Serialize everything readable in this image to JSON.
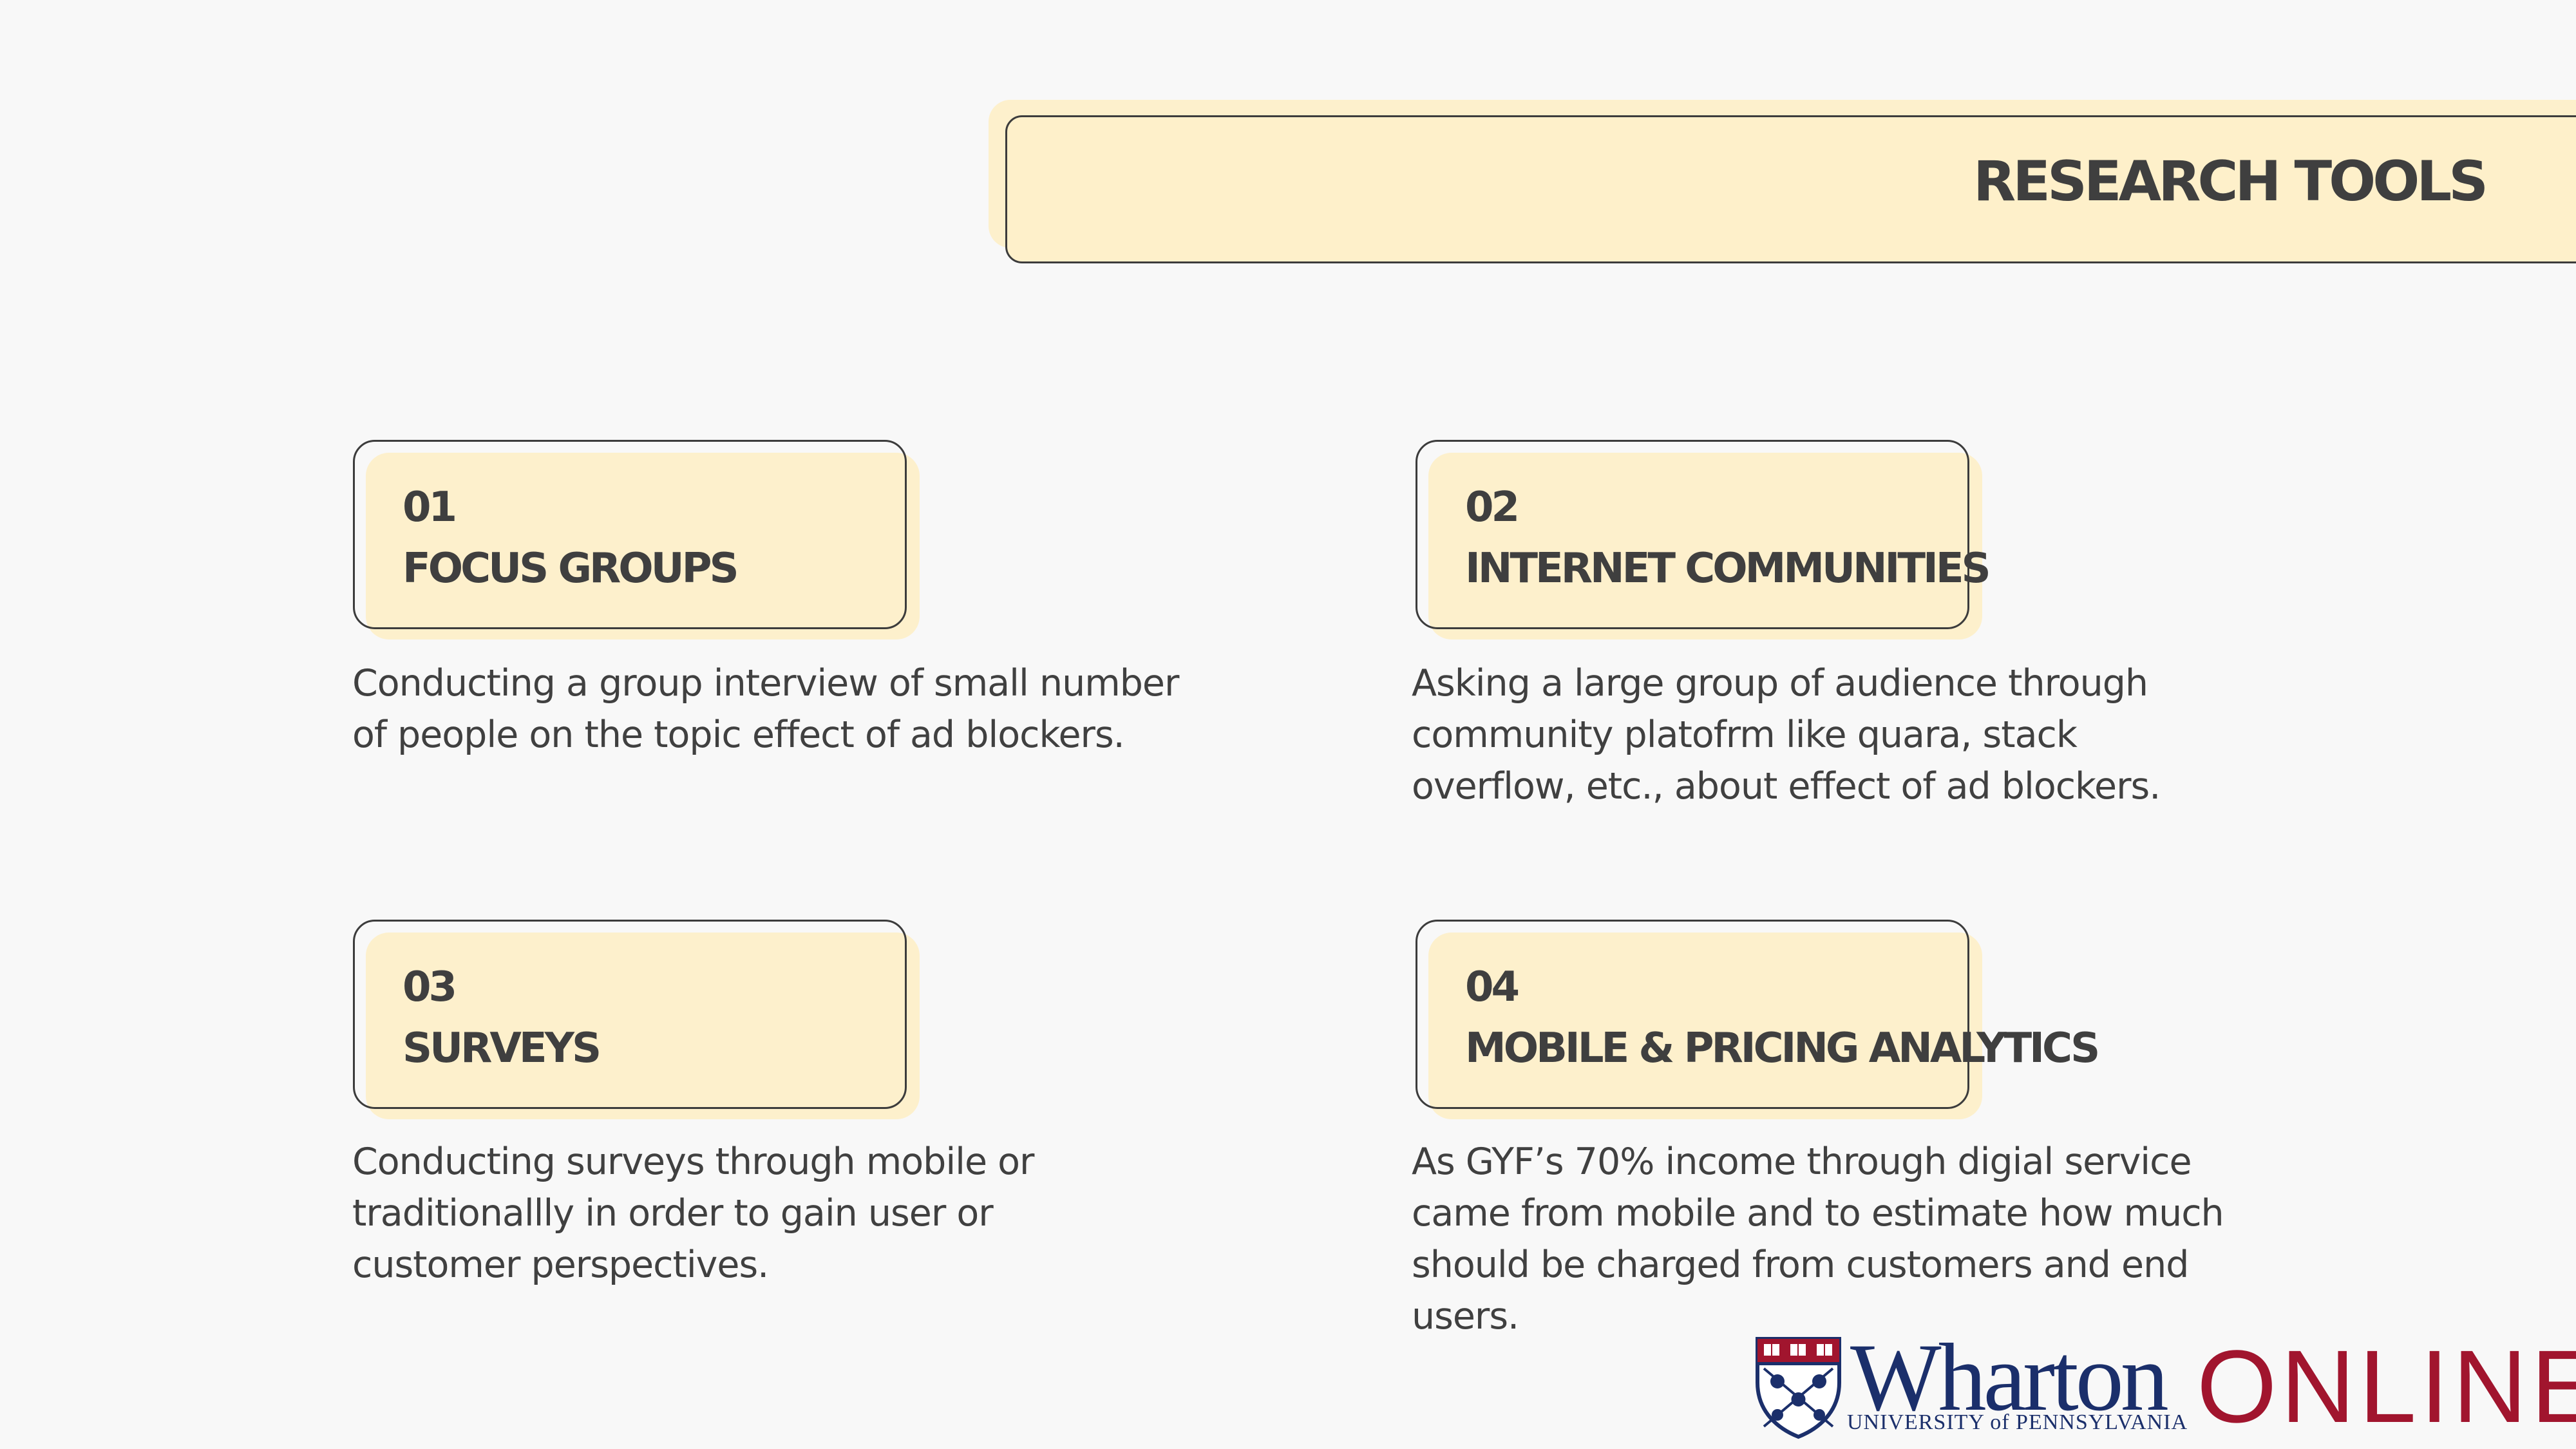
{
  "slide": {
    "title": "RESEARCH TOOLS",
    "colors": {
      "background": "#f8f8f8",
      "card_fill": "#fef0ca",
      "border": "#3c3c3c",
      "heading_text": "#3f3f3f",
      "body_text": "#404040",
      "wharton_blue": "#1b2f6b",
      "online_red": "#a1152e"
    }
  },
  "tools": [
    {
      "number": "01",
      "title": "FOCUS GROUPS",
      "description_lines": [
        "Conducting a group interview of small number",
        "of people on the topic effect of ad blockers."
      ]
    },
    {
      "number": "02",
      "title": "INTERNET COMMUNITIES",
      "description_lines": [
        "Asking a large group of audience through",
        "community platofrm like quara, stack",
        "overflow, etc., about effect of ad blockers."
      ]
    },
    {
      "number": "03",
      "title": "SURVEYS",
      "description_lines": [
        "Conducting surveys through mobile or",
        "traditionallly in order to gain user or",
        "customer perspectives."
      ]
    },
    {
      "number": "04",
      "title": "MOBILE & PRICING ANALYTICS",
      "description_lines": [
        "As GYF’s 70% income through digial service",
        "came from mobile and to estimate how much",
        "should be charged from customers and end",
        "users."
      ]
    }
  ],
  "logo": {
    "name": "Wharton",
    "subtitle": "UNIVERSITY of PENNSYLVANIA",
    "suffix": "ONLINE",
    "shield_icon": "penn-shield-icon"
  }
}
